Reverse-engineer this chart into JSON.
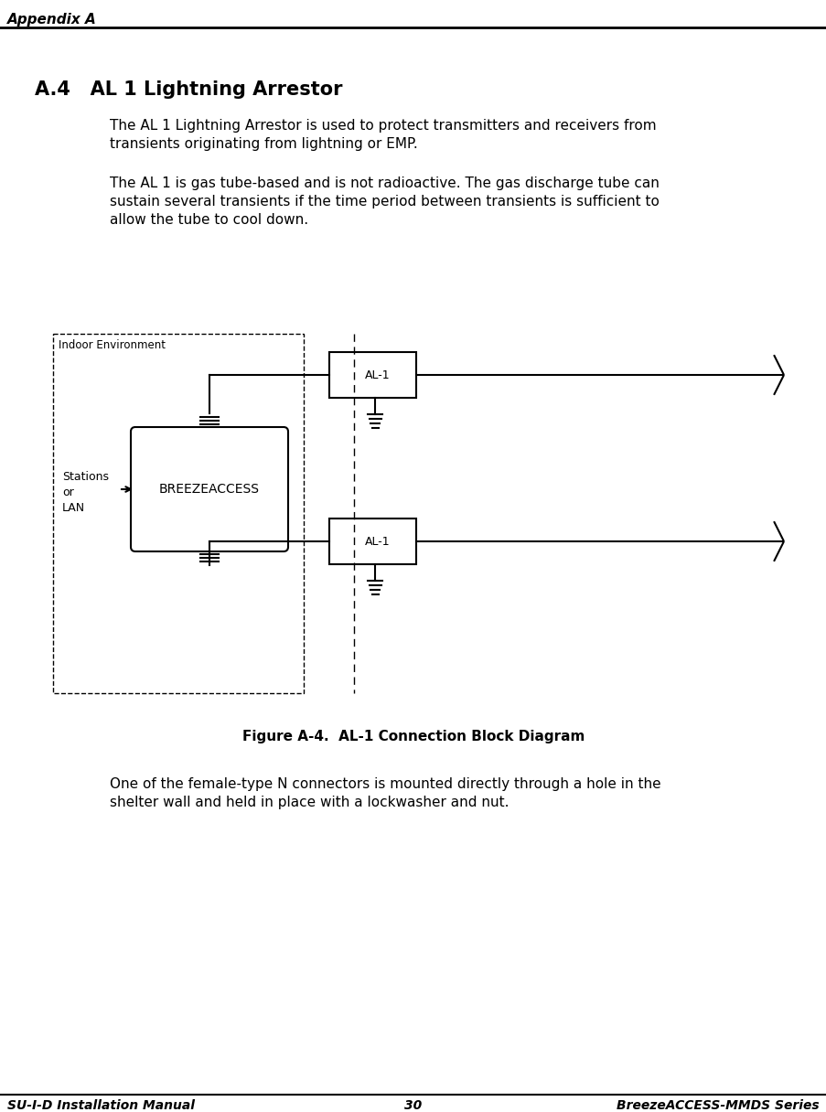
{
  "header_text": "Appendix A",
  "footer_left": "SU-I-D Installation Manual",
  "footer_center": "30",
  "footer_right": "BreezeACCESS-MMDS Series",
  "section_title": "A.4   AL 1 Lightning Arrestor",
  "para1_line1": "The AL 1 Lightning Arrestor is used to protect transmitters and receivers from",
  "para1_line2": "transients originating from lightning or EMP.",
  "para2_line1": "The AL 1 is gas tube-based and is not radioactive. The gas discharge tube can",
  "para2_line2": "sustain several transients if the time period between transients is sufficient to",
  "para2_line3": "allow the tube to cool down.",
  "figure_caption": "Figure A-4.  AL-1 Connection Block Diagram",
  "para3_line1": "One of the female-type N connectors is mounted directly through a hole in the",
  "para3_line2": "shelter wall and held in place with a lockwasher and nut.",
  "bg_color": "#ffffff",
  "text_color": "#000000",
  "diagram_label_indoor": "Indoor Environment",
  "diagram_label_breezeaccess": "BREEZEACCESS",
  "diagram_label_stations_or_lan": "Stations\nor\nLAN",
  "diagram_label_al1": "AL-1",
  "header_fontsize": 11,
  "title_fontsize": 15,
  "body_fontsize": 11,
  "caption_fontsize": 11,
  "footer_fontsize": 10,
  "diagram_fontsize": 9
}
